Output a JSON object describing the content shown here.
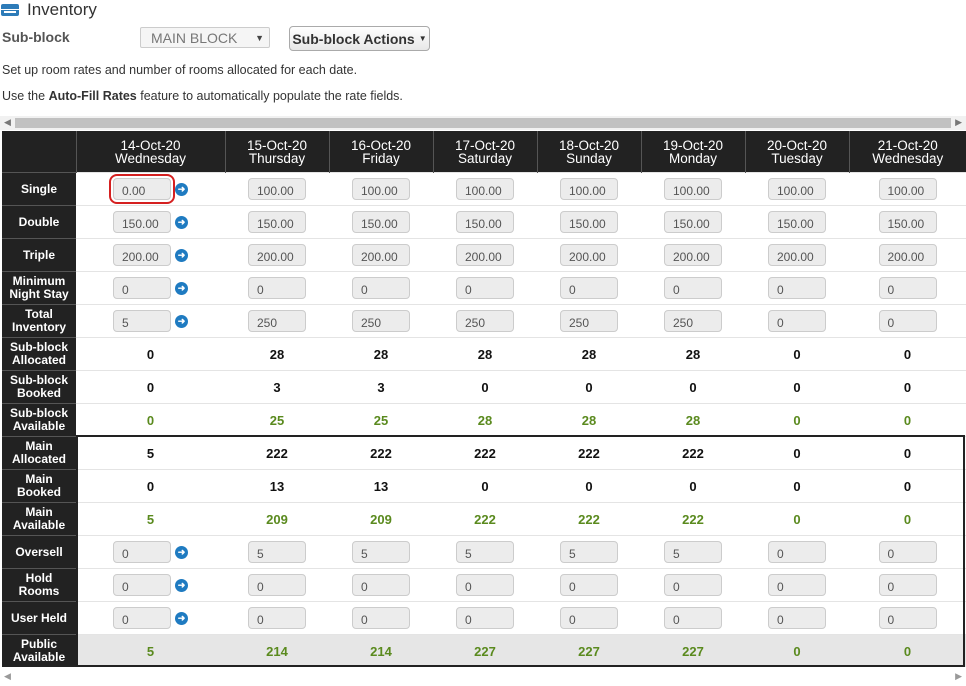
{
  "header": {
    "title": "Inventory",
    "icon": "inventory-icon"
  },
  "subblock": {
    "label": "Sub-block",
    "selected": "MAIN BLOCK",
    "actions_label": "Sub-block Actions"
  },
  "desc": {
    "line1": "Set up room rates and number of rooms allocated for each date.",
    "line2_pre": "Use the ",
    "line2_bold": "Auto-Fill Rates",
    "line2_post": " feature to automatically populate the rate fields."
  },
  "dates": [
    {
      "date": "14-Oct-20",
      "day": "Wednesday"
    },
    {
      "date": "15-Oct-20",
      "day": "Thursday"
    },
    {
      "date": "16-Oct-20",
      "day": "Friday"
    },
    {
      "date": "17-Oct-20",
      "day": "Saturday"
    },
    {
      "date": "18-Oct-20",
      "day": "Sunday"
    },
    {
      "date": "19-Oct-20",
      "day": "Monday"
    },
    {
      "date": "20-Oct-20",
      "day": "Tuesday"
    },
    {
      "date": "21-Oct-20",
      "day": "Wednesday"
    }
  ],
  "rows": [
    {
      "label": [
        "Single"
      ],
      "kind": "input",
      "values": [
        "0.00",
        "100.00",
        "100.00",
        "100.00",
        "100.00",
        "100.00",
        "100.00",
        "100.00"
      ]
    },
    {
      "label": [
        "Double"
      ],
      "kind": "input",
      "values": [
        "150.00",
        "150.00",
        "150.00",
        "150.00",
        "150.00",
        "150.00",
        "150.00",
        "150.00"
      ]
    },
    {
      "label": [
        "Triple"
      ],
      "kind": "input",
      "values": [
        "200.00",
        "200.00",
        "200.00",
        "200.00",
        "200.00",
        "200.00",
        "200.00",
        "200.00"
      ]
    },
    {
      "label": [
        "Minimum",
        "Night Stay"
      ],
      "kind": "input",
      "values": [
        "0",
        "0",
        "0",
        "0",
        "0",
        "0",
        "0",
        "0"
      ]
    },
    {
      "label": [
        "Total",
        "Inventory"
      ],
      "kind": "input",
      "values": [
        "5",
        "250",
        "250",
        "250",
        "250",
        "250",
        "0",
        "0"
      ]
    },
    {
      "label": [
        "Sub-block",
        "Allocated"
      ],
      "kind": "text",
      "values": [
        "0",
        "28",
        "28",
        "28",
        "28",
        "28",
        "0",
        "0"
      ]
    },
    {
      "label": [
        "Sub-block",
        "Booked"
      ],
      "kind": "text",
      "values": [
        "0",
        "3",
        "3",
        "0",
        "0",
        "0",
        "0",
        "0"
      ]
    },
    {
      "label": [
        "Sub-block",
        "Available"
      ],
      "kind": "green",
      "values": [
        "0",
        "25",
        "25",
        "28",
        "28",
        "28",
        "0",
        "0"
      ]
    },
    {
      "label": [
        "Main",
        "Allocated"
      ],
      "kind": "text",
      "values": [
        "5",
        "222",
        "222",
        "222",
        "222",
        "222",
        "0",
        "0"
      ]
    },
    {
      "label": [
        "Main",
        "Booked"
      ],
      "kind": "text",
      "values": [
        "0",
        "13",
        "13",
        "0",
        "0",
        "0",
        "0",
        "0"
      ]
    },
    {
      "label": [
        "Main",
        "Available"
      ],
      "kind": "green",
      "values": [
        "5",
        "209",
        "209",
        "222",
        "222",
        "222",
        "0",
        "0"
      ]
    },
    {
      "label": [
        "Oversell"
      ],
      "kind": "input",
      "values": [
        "0",
        "5",
        "5",
        "5",
        "5",
        "5",
        "0",
        "0"
      ]
    },
    {
      "label": [
        "Hold",
        "Rooms"
      ],
      "kind": "input",
      "values": [
        "0",
        "0",
        "0",
        "0",
        "0",
        "0",
        "0",
        "0"
      ]
    },
    {
      "label": [
        "User Held"
      ],
      "kind": "input",
      "values": [
        "0",
        "0",
        "0",
        "0",
        "0",
        "0",
        "0",
        "0"
      ]
    },
    {
      "label": [
        "Public",
        "Available"
      ],
      "kind": "green",
      "values": [
        "5",
        "214",
        "214",
        "227",
        "227",
        "227",
        "0",
        "0"
      ]
    }
  ],
  "highlight": {
    "row": 0,
    "col": 0
  },
  "colors": {
    "header_bg": "#222222",
    "available": "#5a8a1e",
    "go_button": "#1f7bc1",
    "highlight": "#d52020"
  }
}
